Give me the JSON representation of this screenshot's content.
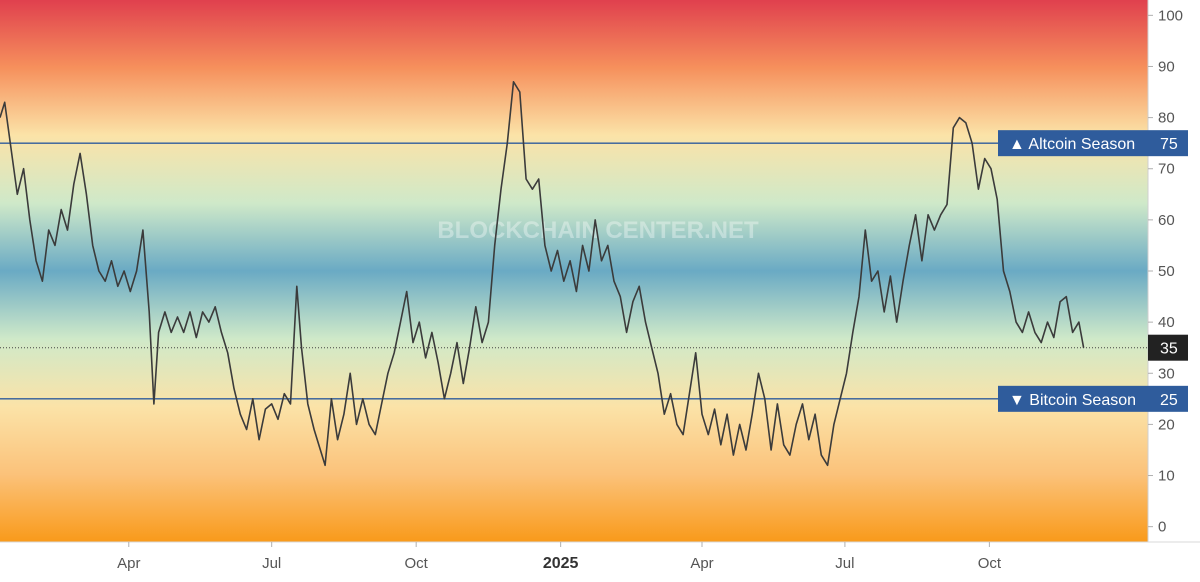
{
  "chart_data": {
    "type": "line",
    "title": "",
    "ylim": [
      -3,
      103
    ],
    "y_ticks": [
      0,
      10,
      20,
      30,
      40,
      50,
      60,
      70,
      80,
      90,
      100
    ],
    "x_ticks": [
      {
        "date": "2024-04-01",
        "label": "Apr",
        "bold": false
      },
      {
        "date": "2024-07-01",
        "label": "Jul",
        "bold": false
      },
      {
        "date": "2024-10-01",
        "label": "Oct",
        "bold": false
      },
      {
        "date": "2025-01-01",
        "label": "2025",
        "bold": true
      },
      {
        "date": "2025-04-01",
        "label": "Apr",
        "bold": false
      },
      {
        "date": "2025-07-01",
        "label": "Jul",
        "bold": false
      },
      {
        "date": "2025-10-01",
        "label": "Oct",
        "bold": false
      }
    ],
    "xlim": [
      "2024-01-10",
      "2026-01-10"
    ],
    "background_gradient": [
      "#e0404e",
      "#f6905c",
      "#fbe3a8",
      "#cfe9c9",
      "#6aaac4",
      "#cfe9c9",
      "#fbe3a8",
      "#fbc27a",
      "#f99a1a"
    ],
    "line_color": "#3b3b3b",
    "reference_lines": [
      {
        "value": 75,
        "label": "▲ Altcoin Season",
        "value_label": "75",
        "color": "#2f5c9c"
      },
      {
        "value": 25,
        "label": "▼ Bitcoin Season",
        "value_label": "25",
        "color": "#2f5c9c"
      }
    ],
    "current": {
      "value": 35,
      "label": "35"
    },
    "watermark": "BLOCKCHAIN CENTER.NET",
    "series": [
      {
        "points": [
          [
            "2024-01-10",
            80
          ],
          [
            "2024-01-13",
            83
          ],
          [
            "2024-01-17",
            74
          ],
          [
            "2024-01-21",
            65
          ],
          [
            "2024-01-25",
            70
          ],
          [
            "2024-01-29",
            60
          ],
          [
            "2024-02-02",
            52
          ],
          [
            "2024-02-06",
            48
          ],
          [
            "2024-02-10",
            58
          ],
          [
            "2024-02-14",
            55
          ],
          [
            "2024-02-18",
            62
          ],
          [
            "2024-02-22",
            58
          ],
          [
            "2024-02-26",
            67
          ],
          [
            "2024-03-01",
            73
          ],
          [
            "2024-03-05",
            65
          ],
          [
            "2024-03-09",
            55
          ],
          [
            "2024-03-13",
            50
          ],
          [
            "2024-03-17",
            48
          ],
          [
            "2024-03-21",
            52
          ],
          [
            "2024-03-25",
            47
          ],
          [
            "2024-03-29",
            50
          ],
          [
            "2024-04-02",
            46
          ],
          [
            "2024-04-06",
            50
          ],
          [
            "2024-04-10",
            58
          ],
          [
            "2024-04-14",
            42
          ],
          [
            "2024-04-17",
            24
          ],
          [
            "2024-04-20",
            38
          ],
          [
            "2024-04-24",
            42
          ],
          [
            "2024-04-28",
            38
          ],
          [
            "2024-05-02",
            41
          ],
          [
            "2024-05-06",
            38
          ],
          [
            "2024-05-10",
            42
          ],
          [
            "2024-05-14",
            37
          ],
          [
            "2024-05-18",
            42
          ],
          [
            "2024-05-22",
            40
          ],
          [
            "2024-05-26",
            43
          ],
          [
            "2024-05-30",
            38
          ],
          [
            "2024-06-03",
            34
          ],
          [
            "2024-06-07",
            27
          ],
          [
            "2024-06-11",
            22
          ],
          [
            "2024-06-15",
            19
          ],
          [
            "2024-06-19",
            25
          ],
          [
            "2024-06-23",
            17
          ],
          [
            "2024-06-27",
            23
          ],
          [
            "2024-07-01",
            24
          ],
          [
            "2024-07-05",
            21
          ],
          [
            "2024-07-09",
            26
          ],
          [
            "2024-07-13",
            24
          ],
          [
            "2024-07-17",
            47
          ],
          [
            "2024-07-20",
            35
          ],
          [
            "2024-07-24",
            24
          ],
          [
            "2024-07-28",
            19
          ],
          [
            "2024-08-01",
            15
          ],
          [
            "2024-08-04",
            12
          ],
          [
            "2024-08-08",
            25
          ],
          [
            "2024-08-12",
            17
          ],
          [
            "2024-08-16",
            22
          ],
          [
            "2024-08-20",
            30
          ],
          [
            "2024-08-24",
            20
          ],
          [
            "2024-08-28",
            25
          ],
          [
            "2024-09-01",
            20
          ],
          [
            "2024-09-05",
            18
          ],
          [
            "2024-09-09",
            24
          ],
          [
            "2024-09-13",
            30
          ],
          [
            "2024-09-17",
            34
          ],
          [
            "2024-09-21",
            40
          ],
          [
            "2024-09-25",
            46
          ],
          [
            "2024-09-29",
            36
          ],
          [
            "2024-10-03",
            40
          ],
          [
            "2024-10-07",
            33
          ],
          [
            "2024-10-11",
            38
          ],
          [
            "2024-10-15",
            32
          ],
          [
            "2024-10-19",
            25
          ],
          [
            "2024-10-23",
            30
          ],
          [
            "2024-10-27",
            36
          ],
          [
            "2024-10-31",
            28
          ],
          [
            "2024-11-04",
            35
          ],
          [
            "2024-11-08",
            43
          ],
          [
            "2024-11-12",
            36
          ],
          [
            "2024-11-16",
            40
          ],
          [
            "2024-11-20",
            55
          ],
          [
            "2024-11-24",
            66
          ],
          [
            "2024-11-28",
            75
          ],
          [
            "2024-12-02",
            87
          ],
          [
            "2024-12-06",
            85
          ],
          [
            "2024-12-10",
            68
          ],
          [
            "2024-12-14",
            66
          ],
          [
            "2024-12-18",
            68
          ],
          [
            "2024-12-22",
            55
          ],
          [
            "2024-12-26",
            50
          ],
          [
            "2024-12-30",
            54
          ],
          [
            "2025-01-03",
            48
          ],
          [
            "2025-01-07",
            52
          ],
          [
            "2025-01-11",
            46
          ],
          [
            "2025-01-15",
            55
          ],
          [
            "2025-01-19",
            50
          ],
          [
            "2025-01-23",
            60
          ],
          [
            "2025-01-27",
            52
          ],
          [
            "2025-01-31",
            55
          ],
          [
            "2025-02-04",
            48
          ],
          [
            "2025-02-08",
            45
          ],
          [
            "2025-02-12",
            38
          ],
          [
            "2025-02-16",
            44
          ],
          [
            "2025-02-20",
            47
          ],
          [
            "2025-02-24",
            40
          ],
          [
            "2025-02-28",
            35
          ],
          [
            "2025-03-04",
            30
          ],
          [
            "2025-03-08",
            22
          ],
          [
            "2025-03-12",
            26
          ],
          [
            "2025-03-16",
            20
          ],
          [
            "2025-03-20",
            18
          ],
          [
            "2025-03-24",
            26
          ],
          [
            "2025-03-28",
            34
          ],
          [
            "2025-04-01",
            22
          ],
          [
            "2025-04-05",
            18
          ],
          [
            "2025-04-09",
            23
          ],
          [
            "2025-04-13",
            16
          ],
          [
            "2025-04-17",
            22
          ],
          [
            "2025-04-21",
            14
          ],
          [
            "2025-04-25",
            20
          ],
          [
            "2025-04-29",
            15
          ],
          [
            "2025-05-03",
            22
          ],
          [
            "2025-05-07",
            30
          ],
          [
            "2025-05-11",
            25
          ],
          [
            "2025-05-15",
            15
          ],
          [
            "2025-05-19",
            24
          ],
          [
            "2025-05-23",
            16
          ],
          [
            "2025-05-27",
            14
          ],
          [
            "2025-05-31",
            20
          ],
          [
            "2025-06-04",
            24
          ],
          [
            "2025-06-08",
            17
          ],
          [
            "2025-06-12",
            22
          ],
          [
            "2025-06-16",
            14
          ],
          [
            "2025-06-20",
            12
          ],
          [
            "2025-06-24",
            20
          ],
          [
            "2025-06-28",
            25
          ],
          [
            "2025-07-02",
            30
          ],
          [
            "2025-07-06",
            38
          ],
          [
            "2025-07-10",
            45
          ],
          [
            "2025-07-14",
            58
          ],
          [
            "2025-07-18",
            48
          ],
          [
            "2025-07-22",
            50
          ],
          [
            "2025-07-26",
            42
          ],
          [
            "2025-07-30",
            49
          ],
          [
            "2025-08-03",
            40
          ],
          [
            "2025-08-07",
            48
          ],
          [
            "2025-08-11",
            55
          ],
          [
            "2025-08-15",
            61
          ],
          [
            "2025-08-19",
            52
          ],
          [
            "2025-08-23",
            61
          ],
          [
            "2025-08-27",
            58
          ],
          [
            "2025-08-31",
            61
          ],
          [
            "2025-09-04",
            63
          ],
          [
            "2025-09-08",
            78
          ],
          [
            "2025-09-12",
            80
          ],
          [
            "2025-09-16",
            79
          ],
          [
            "2025-09-20",
            75
          ],
          [
            "2025-09-24",
            66
          ],
          [
            "2025-09-28",
            72
          ],
          [
            "2025-10-02",
            70
          ],
          [
            "2025-10-06",
            64
          ],
          [
            "2025-10-10",
            50
          ],
          [
            "2025-10-14",
            46
          ],
          [
            "2025-10-18",
            40
          ],
          [
            "2025-10-22",
            38
          ],
          [
            "2025-10-26",
            42
          ],
          [
            "2025-10-30",
            38
          ],
          [
            "2025-11-03",
            36
          ],
          [
            "2025-11-07",
            40
          ],
          [
            "2025-11-11",
            37
          ],
          [
            "2025-11-15",
            44
          ],
          [
            "2025-11-19",
            45
          ],
          [
            "2025-11-23",
            38
          ],
          [
            "2025-11-27",
            40
          ],
          [
            "2025-11-30",
            35
          ]
        ]
      }
    ]
  }
}
